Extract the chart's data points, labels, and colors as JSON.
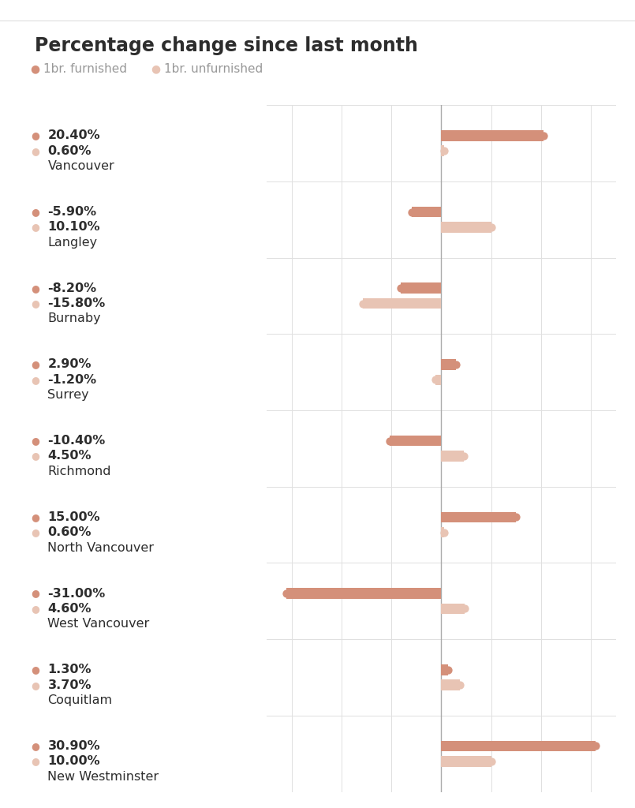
{
  "title": "Percentage change since last month",
  "legend": [
    {
      "label": "1br. furnished",
      "color": "#d4907a"
    },
    {
      "label": "1br. unfurnished",
      "color": "#e8c4b4"
    }
  ],
  "cities": [
    {
      "name": "Vancouver",
      "furnished": 20.4,
      "unfurnished": 0.6
    },
    {
      "name": "Langley",
      "furnished": -5.9,
      "unfurnished": 10.1
    },
    {
      "name": "Burnaby",
      "furnished": -8.2,
      "unfurnished": -15.8
    },
    {
      "name": "Surrey",
      "furnished": 2.9,
      "unfurnished": -1.2
    },
    {
      "name": "Richmond",
      "furnished": -10.4,
      "unfurnished": 4.5
    },
    {
      "name": "North Vancouver",
      "furnished": 15.0,
      "unfurnished": 0.6
    },
    {
      "name": "West Vancouver",
      "furnished": -31.0,
      "unfurnished": 4.6
    },
    {
      "name": "Coquitlam",
      "furnished": 1.3,
      "unfurnished": 3.7
    },
    {
      "name": "New Westminster",
      "furnished": 30.9,
      "unfurnished": 10.0
    }
  ],
  "furnished_color": "#d4907a",
  "unfurnished_color": "#e8c4b4",
  "background_color": "#ffffff",
  "grid_color": "#e0e0e0",
  "text_color": "#2d2d2d",
  "label_color": "#888888",
  "title_fontsize": 17,
  "legend_fontsize": 11,
  "value_fontsize": 11.5,
  "city_fontsize": 11.5,
  "bar_height": 0.14,
  "bar_gap": 0.06,
  "xlim": [
    -35,
    35
  ],
  "zero_line_color": "#aaaaaa",
  "row_line_color": "#e0e0e0"
}
